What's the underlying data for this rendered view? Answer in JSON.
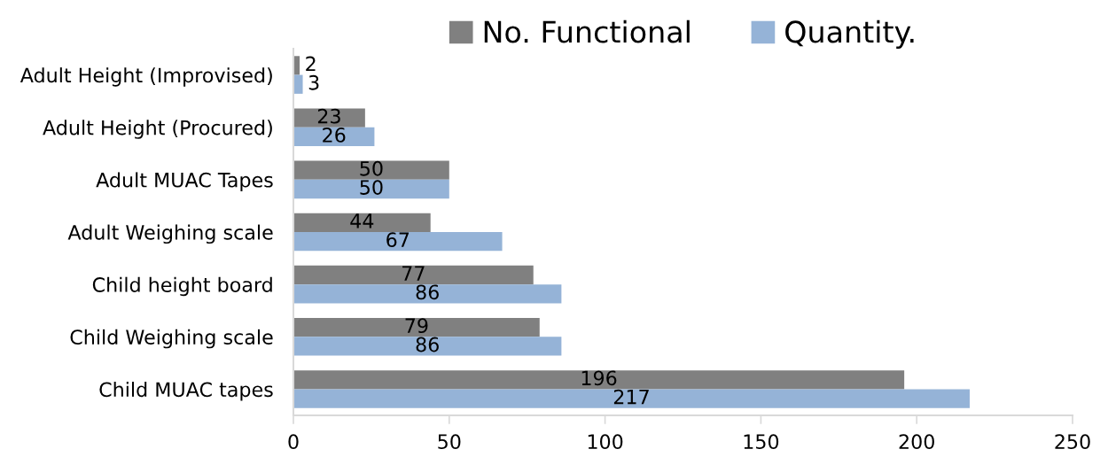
{
  "chart_data": {
    "type": "bar",
    "orientation": "horizontal",
    "categories": [
      "Adult Height (Improvised)",
      "Adult Height (Procured)",
      "Adult MUAC Tapes",
      "Adult Weighing scale",
      "Child height board",
      "Child Weighing scale",
      "Child MUAC tapes"
    ],
    "series": [
      {
        "name": "No. Functional",
        "color": "#808080",
        "values": [
          2,
          23,
          50,
          44,
          77,
          79,
          196
        ]
      },
      {
        "name": "Quantity.",
        "color": "#95b3d7",
        "values": [
          3,
          26,
          50,
          67,
          86,
          86,
          217
        ]
      }
    ],
    "xlim": [
      0,
      250
    ],
    "xticks": [
      0,
      50,
      100,
      150,
      200,
      250
    ],
    "data_labels": true,
    "legend": "top",
    "grid": false
  }
}
